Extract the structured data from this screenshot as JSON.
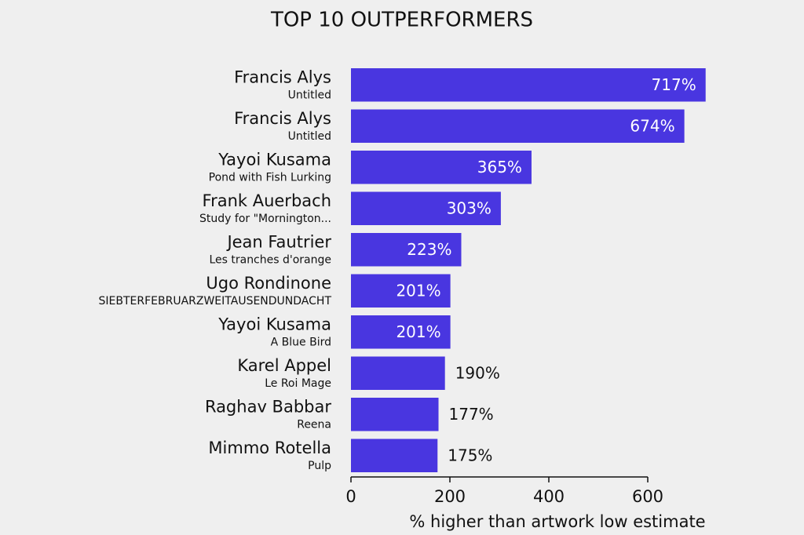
{
  "chart_data": {
    "type": "bar",
    "orientation": "horizontal",
    "title": "TOP 10 OUTPERFORMERS",
    "categories": [
      "Francis Alys",
      "Francis Alys",
      "Yayoi Kusama",
      "Frank Auerbach",
      "Jean Fautrier",
      "Ugo Rondinone",
      "Yayoi Kusama",
      "Karel Appel",
      "Raghav Babbar",
      "Mimmo Rotella"
    ],
    "artworks": [
      "Untitled",
      "Untitled",
      "Pond with Fish Lurking",
      "Study for \"Mornington...",
      "Les tranches d'orange",
      "SIEBTERFEBRUARZWEITAUSENDUNDACHT",
      "A Blue Bird",
      "Le Roi Mage",
      "Reena",
      "Pulp"
    ],
    "values": [
      717,
      674,
      365,
      303,
      223,
      201,
      201,
      190,
      177,
      175
    ],
    "value_labels": [
      "717%",
      "674%",
      "365%",
      "303%",
      "223%",
      "201%",
      "201%",
      "190%",
      "177%",
      "175%"
    ],
    "color": "#4936e0",
    "xlabel": "% higher than artwork low estimate",
    "xlim": [
      0,
      600
    ],
    "xticks": [
      0,
      200,
      400,
      600
    ]
  }
}
